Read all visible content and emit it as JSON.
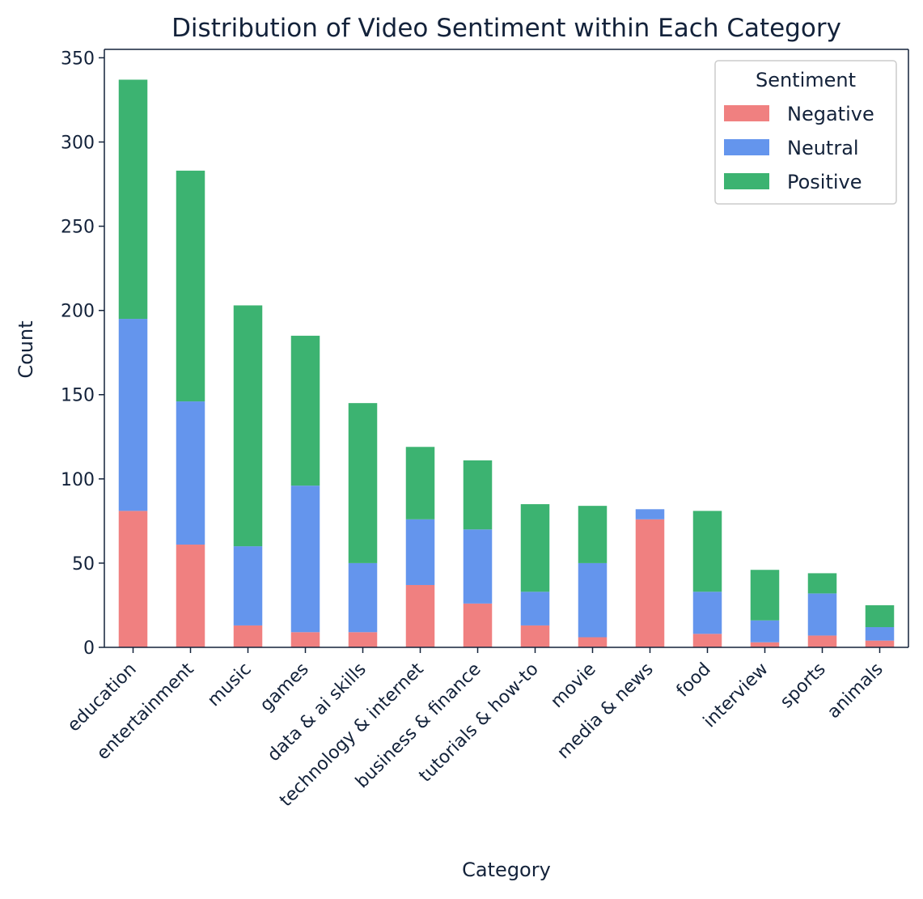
{
  "chart_data": {
    "type": "bar",
    "stacked": true,
    "title": "Distribution of Video Sentiment within Each Category",
    "xlabel": "Category",
    "ylabel": "Count",
    "ylim": [
      0,
      355
    ],
    "yticks": [
      0,
      50,
      100,
      150,
      200,
      250,
      300,
      350
    ],
    "grid": false,
    "legend": {
      "title": "Sentiment",
      "placement": "top-right"
    },
    "categories": [
      "education",
      "entertainment",
      "music",
      "games",
      "data & ai skills",
      "technology & internet",
      "business & finance",
      "tutorials & how-to",
      "movie",
      "media & news",
      "food",
      "interview",
      "sports",
      "animals"
    ],
    "series": [
      {
        "name": "Negative",
        "color": "#f08080",
        "values": [
          81,
          61,
          13,
          9,
          9,
          37,
          26,
          13,
          6,
          76,
          8,
          3,
          7,
          4
        ]
      },
      {
        "name": "Neutral",
        "color": "#6495ed",
        "values": [
          114,
          85,
          47,
          87,
          41,
          39,
          44,
          20,
          44,
          6,
          25,
          13,
          25,
          8
        ]
      },
      {
        "name": "Positive",
        "color": "#3cb371",
        "values": [
          142,
          137,
          143,
          89,
          95,
          43,
          41,
          52,
          34,
          0,
          48,
          30,
          12,
          13
        ]
      }
    ]
  }
}
